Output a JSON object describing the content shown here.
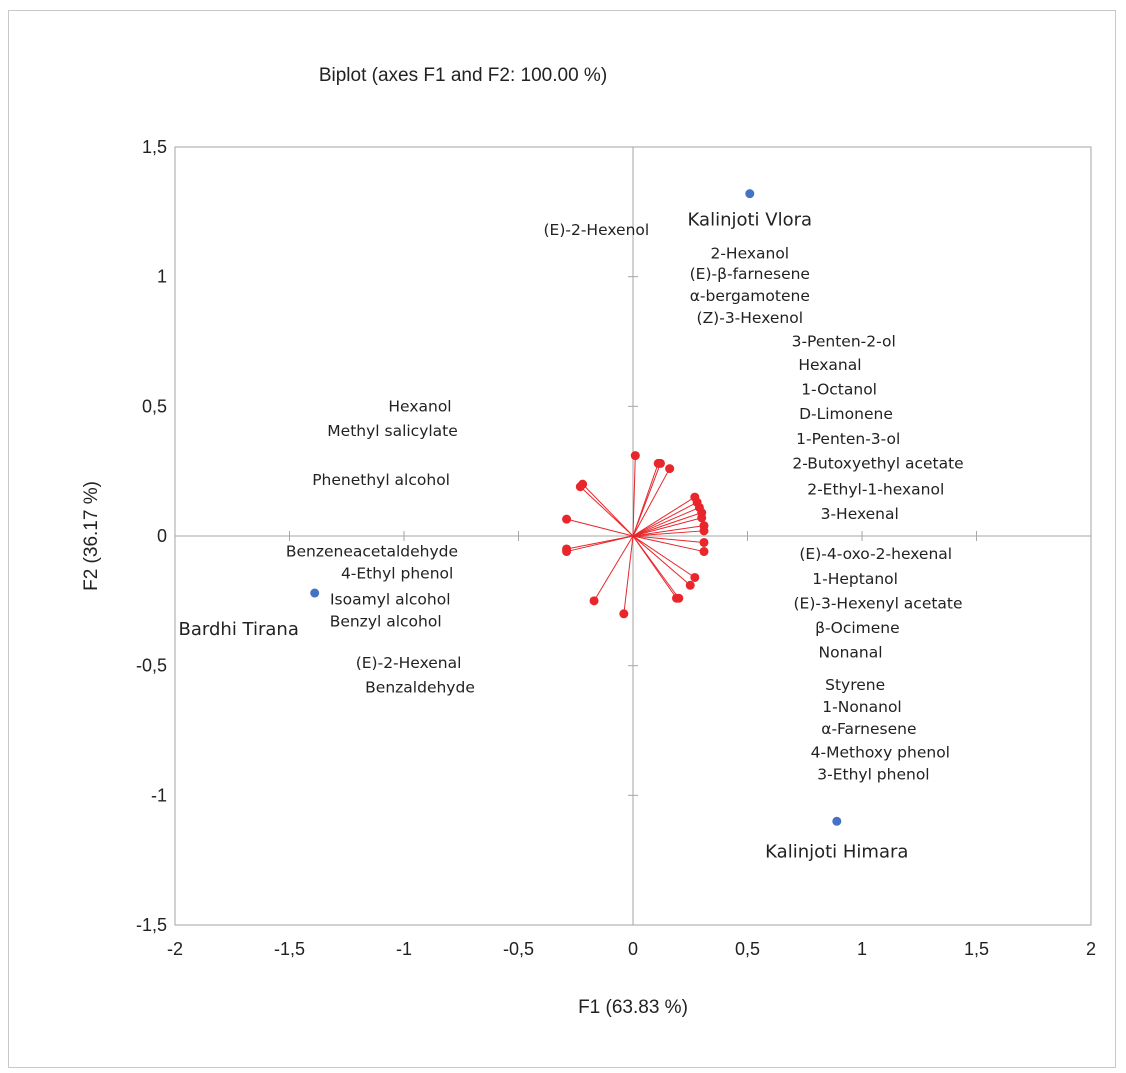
{
  "chart_data": {
    "type": "scatter",
    "title": "Biplot (axes F1 and F2: 100.00 %)",
    "xlabel": "F1 (63.83 %)",
    "ylabel": "F2 (36.17 %)",
    "xlim": [
      -2,
      2
    ],
    "ylim": [
      -1.5,
      1.5
    ],
    "x_ticks": [
      {
        "value": -2,
        "label": "-2"
      },
      {
        "value": -1.5,
        "label": "-1,5"
      },
      {
        "value": -1,
        "label": "-1"
      },
      {
        "value": -0.5,
        "label": "-0,5"
      },
      {
        "value": 0,
        "label": "0"
      },
      {
        "value": 0.5,
        "label": "0,5"
      },
      {
        "value": 1,
        "label": "1"
      },
      {
        "value": 1.5,
        "label": "1,5"
      },
      {
        "value": 2,
        "label": "2"
      }
    ],
    "y_ticks": [
      {
        "value": -1.5,
        "label": "-1,5"
      },
      {
        "value": -1,
        "label": "-1"
      },
      {
        "value": -0.5,
        "label": "-0,5"
      },
      {
        "value": 0,
        "label": "0"
      },
      {
        "value": 0.5,
        "label": "0,5"
      },
      {
        "value": 1,
        "label": "1"
      },
      {
        "value": 1.5,
        "label": "1,5"
      }
    ],
    "grid": false,
    "colors": {
      "observations": "#4472c4",
      "variables": "#e8262b",
      "axes": "#a6a6a6"
    },
    "observations": [
      {
        "label": "Kalinjoti Vlora",
        "x": 0.51,
        "y": 1.32
      },
      {
        "label": "Bardhi Tirana",
        "x": -1.39,
        "y": -0.22
      },
      {
        "label": "Kalinjoti Himara",
        "x": 0.89,
        "y": -1.1
      }
    ],
    "vector_ends": [
      [
        0.01,
        0.31
      ],
      [
        0.11,
        0.28
      ],
      [
        0.12,
        0.28
      ],
      [
        0.16,
        0.26
      ],
      [
        -0.22,
        0.2
      ],
      [
        -0.23,
        0.19
      ],
      [
        -0.29,
        0.065
      ],
      [
        -0.29,
        -0.05
      ],
      [
        -0.29,
        -0.06
      ],
      [
        0.27,
        0.15
      ],
      [
        0.28,
        0.13
      ],
      [
        0.29,
        0.11
      ],
      [
        0.3,
        0.09
      ],
      [
        0.3,
        0.07
      ],
      [
        0.31,
        0.04
      ],
      [
        0.31,
        0.02
      ],
      [
        0.31,
        -0.025
      ],
      [
        0.31,
        -0.06
      ],
      [
        0.25,
        -0.19
      ],
      [
        0.27,
        -0.16
      ],
      [
        0.19,
        -0.24
      ],
      [
        0.2,
        -0.24
      ],
      [
        -0.17,
        -0.25
      ],
      [
        -0.04,
        -0.3
      ]
    ],
    "variable_labels": [
      {
        "label": "(E)-2-Hexenol",
        "x": -0.16,
        "y": 1.18
      },
      {
        "label": "2-Hexanol",
        "x": 0.51,
        "y": 1.09
      },
      {
        "label": "(E)-β-farnesene",
        "x": 0.51,
        "y": 1.01
      },
      {
        "label": "α-bergamotene",
        "x": 0.51,
        "y": 0.925
      },
      {
        "label": "(Z)-3-Hexenol",
        "x": 0.51,
        "y": 0.84
      },
      {
        "label": "3-Penten-2-ol",
        "x": 0.92,
        "y": 0.75
      },
      {
        "label": "Hexanal",
        "x": 0.86,
        "y": 0.66
      },
      {
        "label": "1-Octanol",
        "x": 0.9,
        "y": 0.565
      },
      {
        "label": "D-Limonene",
        "x": 0.93,
        "y": 0.47
      },
      {
        "label": "1-Penten-3-ol",
        "x": 0.94,
        "y": 0.375
      },
      {
        "label": "2-Butoxyethyl  acetate",
        "x": 1.07,
        "y": 0.28
      },
      {
        "label": "2-Ethyl-1-hexanol",
        "x": 1.06,
        "y": 0.18
      },
      {
        "label": "3-Hexenal",
        "x": 0.99,
        "y": 0.085
      },
      {
        "label": "Hexanol",
        "x": -0.93,
        "y": 0.5
      },
      {
        "label": "Methyl salicylate",
        "x": -1.05,
        "y": 0.405
      },
      {
        "label": "Phenethyl alcohol",
        "x": -1.1,
        "y": 0.215
      },
      {
        "label": "Benzeneacetaldehyde",
        "x": -1.14,
        "y": -0.06
      },
      {
        "label": "4-Ethyl phenol",
        "x": -1.03,
        "y": -0.145
      },
      {
        "label": "Isoamyl alcohol",
        "x": -1.06,
        "y": -0.245
      },
      {
        "label": "Benzyl alcohol",
        "x": -1.08,
        "y": -0.33
      },
      {
        "label": "(E)-2-Hexenal",
        "x": -0.98,
        "y": -0.49
      },
      {
        "label": "Benzaldehyde",
        "x": -0.93,
        "y": -0.585
      },
      {
        "label": "(E)-4-oxo-2-hexenal",
        "x": 1.06,
        "y": -0.07
      },
      {
        "label": "1-Heptanol",
        "x": 0.97,
        "y": -0.165
      },
      {
        "label": "(E)-3-Hexenyl acetate",
        "x": 1.07,
        "y": -0.26
      },
      {
        "label": "β-Ocimene",
        "x": 0.98,
        "y": -0.355
      },
      {
        "label": "Nonanal",
        "x": 0.95,
        "y": -0.45
      },
      {
        "label": "Styrene",
        "x": 0.97,
        "y": -0.575
      },
      {
        "label": "1-Nonanol",
        "x": 1,
        "y": -0.66
      },
      {
        "label": "α-Farnesene",
        "x": 1.03,
        "y": -0.745
      },
      {
        "label": "4-Methoxy phenol",
        "x": 1.08,
        "y": -0.835
      },
      {
        "label": "3-Ethyl phenol",
        "x": 1.05,
        "y": -0.92
      }
    ]
  }
}
